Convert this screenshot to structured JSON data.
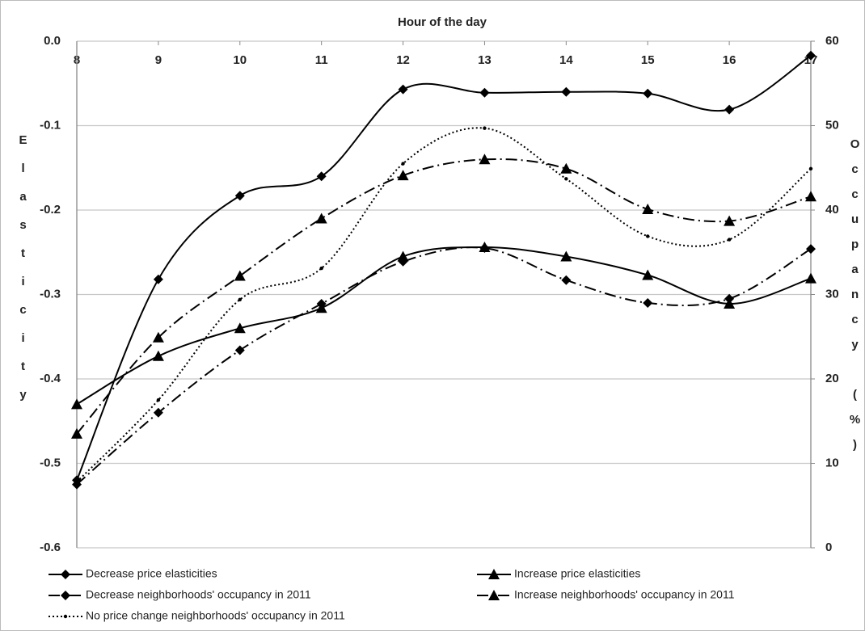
{
  "chart_data": {
    "type": "line",
    "title": "Hour of the day",
    "y_label": "Elasticity",
    "y2_label": "Occupancy (%)",
    "x": [
      8,
      9,
      10,
      11,
      12,
      13,
      14,
      15,
      16,
      17
    ],
    "xlim": [
      8,
      17
    ],
    "xticks": [
      8,
      9,
      10,
      11,
      12,
      13,
      14,
      15,
      16,
      17
    ],
    "ylim": [
      -0.6,
      0
    ],
    "yticks": [
      -0.6,
      -0.5,
      -0.4,
      -0.3,
      -0.2,
      -0.1,
      {
        "value": 0,
        "label": "0.0"
      }
    ],
    "y2lim": [
      0,
      60
    ],
    "y2ticks": [
      0,
      10,
      20,
      30,
      40,
      50,
      60
    ],
    "grid": true,
    "smooth": true,
    "legend": "bottom",
    "series": [
      {
        "name": "Decrease price elasticities",
        "color": "#000000",
        "marker": "diamond",
        "dash": "solid",
        "axis": "y",
        "values": [
          -0.52,
          -0.282,
          -0.183,
          -0.16,
          -0.057,
          -0.061,
          -0.06,
          -0.062,
          -0.081,
          -0.017
        ]
      },
      {
        "name": "Increase price elasticities",
        "color": "#000000",
        "marker": "triangle",
        "dash": "solid",
        "axis": "y",
        "values": [
          -0.43,
          -0.373,
          -0.34,
          -0.316,
          -0.255,
          -0.244,
          -0.255,
          -0.277,
          -0.311,
          -0.281
        ]
      },
      {
        "name": "Decrease neighborhoods' occupancy in 2011",
        "color": "#000000",
        "marker": "diamond",
        "dash": "dashdot",
        "axis": "y2",
        "values": [
          7.5,
          16,
          23.4,
          28.9,
          33.9,
          35.5,
          31.7,
          29,
          29.5,
          35.4
        ]
      },
      {
        "name": "Increase neighborhoods' occupancy in 2011",
        "color": "#000000",
        "marker": "triangle",
        "dash": "dashdot",
        "axis": "y2",
        "values": [
          13.5,
          24.9,
          32.2,
          39,
          44.1,
          46,
          44.9,
          40.1,
          38.7,
          41.6
        ]
      },
      {
        "name": "No price change neighborhoods' occupancy in 2011",
        "color": "#000000",
        "marker": "dot",
        "dash": "dotted",
        "axis": "y2",
        "values": [
          7.8,
          17.5,
          29.4,
          33.1,
          45.5,
          49.7,
          43.7,
          36.9,
          36.5,
          44.9
        ]
      }
    ]
  }
}
